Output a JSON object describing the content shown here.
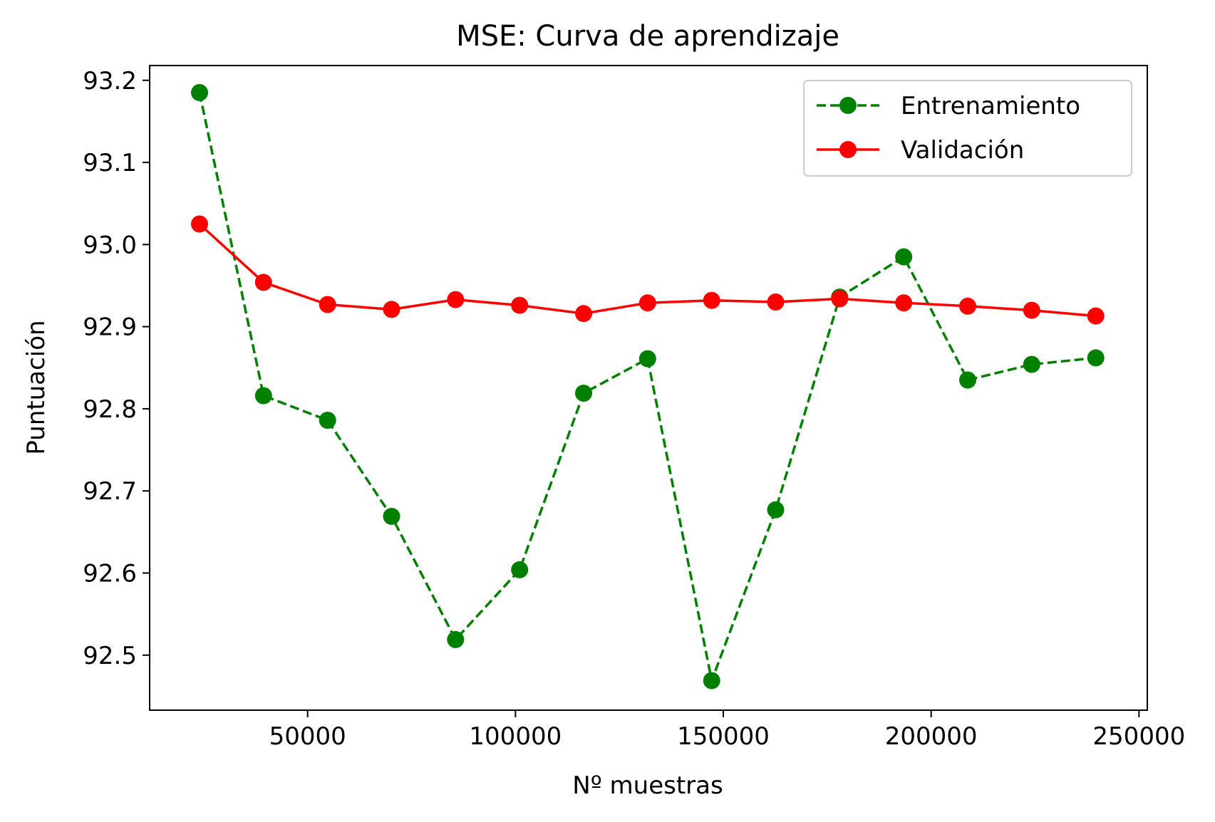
{
  "chart_data": {
    "type": "line",
    "title": "MSE: Curva de aprendizaje",
    "xlabel": "Nº muestras",
    "ylabel": "Puntuación",
    "xlim": [
      12000,
      252000
    ],
    "ylim": [
      92.433,
      93.218
    ],
    "xticks": [
      50000,
      100000,
      150000,
      200000,
      250000
    ],
    "xtick_labels": [
      "50000",
      "100000",
      "150000",
      "200000",
      "250000"
    ],
    "yticks": [
      92.5,
      92.6,
      92.7,
      92.8,
      92.9,
      93.0,
      93.1,
      93.2
    ],
    "ytick_labels": [
      "92.5",
      "92.6",
      "92.7",
      "92.8",
      "92.9",
      "93.0",
      "93.1",
      "93.2"
    ],
    "grid": false,
    "legend_position": "upper right",
    "x": [
      24000,
      39400,
      54800,
      70200,
      85600,
      101000,
      116400,
      131800,
      147200,
      162600,
      178000,
      193400,
      208800,
      224200,
      239600
    ],
    "series": [
      {
        "name": "Entrenamiento",
        "color": "#008000",
        "line_style": "dashed",
        "marker": "circle",
        "values": [
          93.185,
          92.816,
          92.786,
          92.669,
          92.519,
          92.604,
          92.819,
          92.861,
          92.469,
          92.677,
          92.936,
          92.985,
          92.835,
          92.854,
          92.862
        ]
      },
      {
        "name": "Validación",
        "color": "#ff0000",
        "line_style": "solid",
        "marker": "circle",
        "values": [
          93.025,
          92.954,
          92.927,
          92.921,
          92.933,
          92.926,
          92.916,
          92.929,
          92.932,
          92.93,
          92.934,
          92.929,
          92.925,
          92.92,
          92.913
        ]
      }
    ]
  }
}
